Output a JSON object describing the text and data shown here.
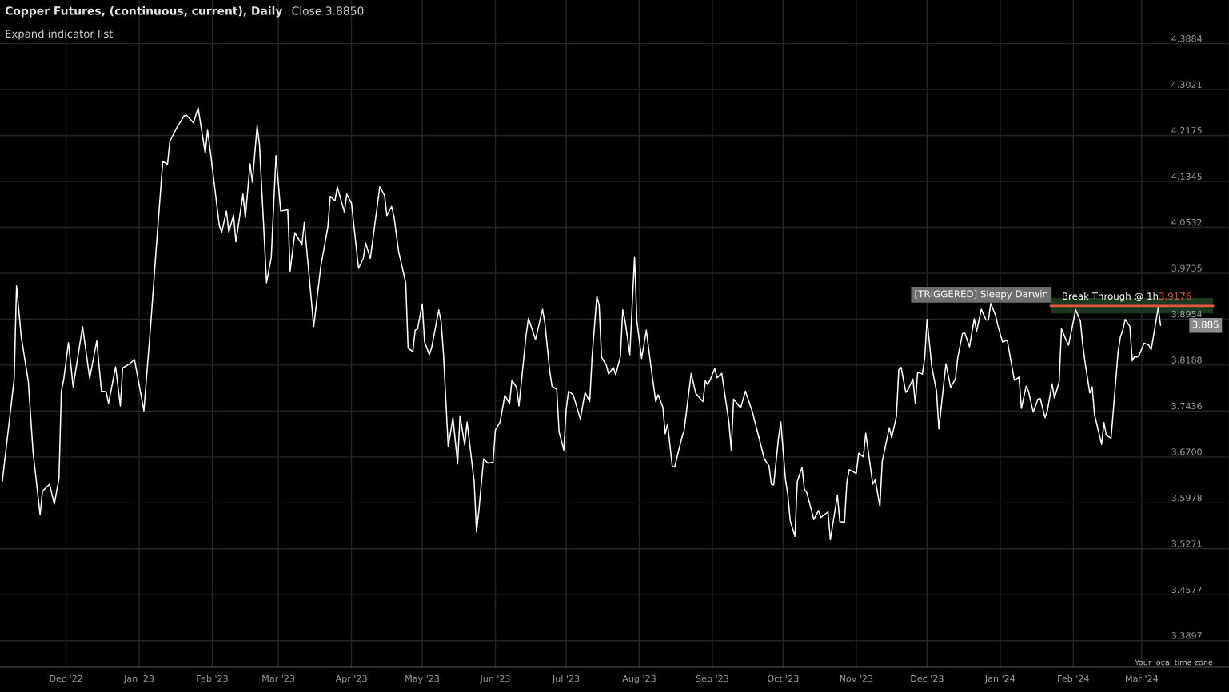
{
  "chart_data": {
    "type": "line",
    "title": "Copper Futures, (continuous, current), Daily",
    "subtitle": "Close 3.8850",
    "annotations": [
      "Expand indicator list",
      "[TRIGGERED] Sleepy Darwin",
      "3.9176",
      "3.885",
      "Your local time zone"
    ],
    "log": true,
    "grid": true,
    "xlim": [
      "2022-11-03",
      "2024-04-07"
    ],
    "ylim": [
      3.351,
      4.472
    ],
    "xticks": [
      {
        "value": "2022-12-01",
        "label": "Dec '22"
      },
      {
        "value": "2023-01-01",
        "label": "Jan '23"
      },
      {
        "value": "2023-02-01",
        "label": "Feb '23"
      },
      {
        "value": "2023-03-01",
        "label": "Mar '23"
      },
      {
        "value": "2023-04-01",
        "label": "Apr '23"
      },
      {
        "value": "2023-05-01",
        "label": "May '23"
      },
      {
        "value": "2023-06-01",
        "label": "Jun '23"
      },
      {
        "value": "2023-07-01",
        "label": "Jul '23"
      },
      {
        "value": "2023-08-01",
        "label": "Aug '23"
      },
      {
        "value": "2023-09-01",
        "label": "Sep '23"
      },
      {
        "value": "2023-10-01",
        "label": "Oct '23"
      },
      {
        "value": "2023-11-01",
        "label": "Nov '23"
      },
      {
        "value": "2023-12-01",
        "label": "Dec '23"
      },
      {
        "value": "2024-01-01",
        "label": "Jan '24"
      },
      {
        "value": "2024-02-01",
        "label": "Feb '24"
      },
      {
        "value": "2024-03-01",
        "label": "Mar '24"
      }
    ],
    "yticks": [
      3.3897,
      3.4577,
      3.5271,
      3.5978,
      {
        "value": 3.67,
        "label": "3.6700"
      },
      3.7436,
      3.8188,
      3.8954,
      3.9735,
      4.0532,
      4.1345,
      4.2175,
      4.3021,
      4.3884
    ],
    "ref_lines": [
      {
        "axis": "y",
        "value": 3.9176,
        "label": "Break Through @ 1h",
        "color": "#e8553f"
      }
    ],
    "bands": [
      {
        "axis": "y",
        "from": 3.905,
        "to": 3.931,
        "color": "#1d3a1f"
      }
    ],
    "series": [
      {
        "color": "#ffffff",
        "x": [
          "2022-11-04",
          "2022-11-09",
          "2022-11-10",
          "2022-11-12",
          "2022-11-15",
          "2022-11-17",
          "2022-11-20",
          "2022-11-21",
          "2022-11-24",
          "2022-11-26",
          "2022-11-28",
          "2022-11-29",
          "2022-11-30",
          "2022-12-02",
          "2022-12-04",
          "2022-12-08",
          "2022-12-11",
          "2022-12-14",
          "2022-12-16",
          "2022-12-18",
          "2022-12-19",
          "2022-12-22",
          "2022-12-24",
          "2022-12-25",
          "2022-12-28",
          "2022-12-30",
          "2022-12-31",
          "2023-01-03",
          "2023-01-06",
          "2023-01-08",
          "2023-01-11",
          "2023-01-13",
          "2023-01-14",
          "2023-01-17",
          "2023-01-20",
          "2023-01-21",
          "2023-01-24",
          "2023-01-26",
          "2023-01-29",
          "2023-01-30",
          "2023-01-31",
          "2023-02-04",
          "2023-02-05",
          "2023-02-07",
          "2023-02-08",
          "2023-02-10",
          "2023-02-11",
          "2023-02-14",
          "2023-02-15",
          "2023-02-17",
          "2023-02-18",
          "2023-02-20",
          "2023-02-21",
          "2023-02-24",
          "2023-02-26",
          "2023-02-28",
          "2023-03-02",
          "2023-03-05",
          "2023-03-06",
          "2023-03-08",
          "2023-03-11",
          "2023-03-12",
          "2023-03-13",
          "2023-03-16",
          "2023-03-19",
          "2023-03-22",
          "2023-03-23",
          "2023-03-25",
          "2023-03-26",
          "2023-03-29",
          "2023-03-30",
          "2023-04-01",
          "2023-04-04",
          "2023-04-06",
          "2023-04-07",
          "2023-04-09",
          "2023-04-13",
          "2023-04-15",
          "2023-04-16",
          "2023-04-18",
          "2023-04-19",
          "2023-04-21",
          "2023-04-24",
          "2023-04-25",
          "2023-04-27",
          "2023-04-28",
          "2023-04-29",
          "2023-05-01",
          "2023-05-02",
          "2023-05-04",
          "2023-05-05",
          "2023-05-08",
          "2023-05-09",
          "2023-05-10",
          "2023-05-12",
          "2023-05-14",
          "2023-05-16",
          "2023-05-17",
          "2023-05-19",
          "2023-05-20",
          "2023-05-23",
          "2023-05-24",
          "2023-05-25",
          "2023-05-27",
          "2023-05-29",
          "2023-05-31",
          "2023-06-01",
          "2023-06-03",
          "2023-06-05",
          "2023-06-07",
          "2023-06-08",
          "2023-06-10",
          "2023-06-11",
          "2023-06-14",
          "2023-06-15",
          "2023-06-18",
          "2023-06-21",
          "2023-06-22",
          "2023-06-24",
          "2023-06-25",
          "2023-06-27",
          "2023-06-28",
          "2023-06-30",
          "2023-07-01",
          "2023-07-02",
          "2023-07-04",
          "2023-07-07",
          "2023-07-09",
          "2023-07-11",
          "2023-07-12",
          "2023-07-14",
          "2023-07-15",
          "2023-07-16",
          "2023-07-18",
          "2023-07-19",
          "2023-07-21",
          "2023-07-22",
          "2023-07-24",
          "2023-07-25",
          "2023-07-26",
          "2023-07-28",
          "2023-07-29",
          "2023-07-30",
          "2023-07-31",
          "2023-08-02",
          "2023-08-04",
          "2023-08-05",
          "2023-08-06",
          "2023-08-08",
          "2023-08-09",
          "2023-08-11",
          "2023-08-12",
          "2023-08-13",
          "2023-08-15",
          "2023-08-16",
          "2023-08-19",
          "2023-08-20",
          "2023-08-23",
          "2023-08-25",
          "2023-08-28",
          "2023-08-29",
          "2023-08-30",
          "2023-08-31",
          "2023-09-02",
          "2023-09-03",
          "2023-09-05",
          "2023-09-08",
          "2023-09-09",
          "2023-09-10",
          "2023-09-13",
          "2023-09-15",
          "2023-09-18",
          "2023-09-20",
          "2023-09-23",
          "2023-09-25",
          "2023-09-26",
          "2023-09-27",
          "2023-09-29",
          "2023-09-30",
          "2023-10-02",
          "2023-10-03",
          "2023-10-04",
          "2023-10-06",
          "2023-10-07",
          "2023-10-09",
          "2023-10-10",
          "2023-10-11",
          "2023-10-14",
          "2023-10-16",
          "2023-10-17",
          "2023-10-20",
          "2023-10-21",
          "2023-10-24",
          "2023-10-25",
          "2023-10-27",
          "2023-10-28",
          "2023-10-29",
          "2023-11-01",
          "2023-11-02",
          "2023-11-04",
          "2023-11-05",
          "2023-11-08",
          "2023-11-09",
          "2023-11-11",
          "2023-11-12",
          "2023-11-13",
          "2023-11-15",
          "2023-11-16",
          "2023-11-18",
          "2023-11-19",
          "2023-11-20",
          "2023-11-22",
          "2023-11-23",
          "2023-11-25",
          "2023-11-26",
          "2023-11-27",
          "2023-11-29",
          "2023-11-30",
          "2023-12-01",
          "2023-12-03",
          "2023-12-05",
          "2023-12-06",
          "2023-12-08",
          "2023-12-09",
          "2023-12-11",
          "2023-12-13",
          "2023-12-14",
          "2023-12-16",
          "2023-12-17",
          "2023-12-19",
          "2023-12-21",
          "2023-12-22",
          "2023-12-24",
          "2023-12-26",
          "2023-12-27",
          "2023-12-28",
          "2023-12-30",
          "2023-12-31",
          "2024-01-02",
          "2024-01-04",
          "2024-01-05",
          "2024-01-07",
          "2024-01-09",
          "2024-01-10",
          "2024-01-12",
          "2024-01-13",
          "2024-01-15",
          "2024-01-17",
          "2024-01-18",
          "2024-01-20",
          "2024-01-21",
          "2024-01-23",
          "2024-01-24",
          "2024-01-26",
          "2024-01-27",
          "2024-01-29",
          "2024-01-30",
          "2024-02-02",
          "2024-02-04",
          "2024-02-05",
          "2024-02-06",
          "2024-02-08",
          "2024-02-09",
          "2024-02-10",
          "2024-02-13",
          "2024-02-14",
          "2024-02-15",
          "2024-02-17",
          "2024-02-18",
          "2024-02-20",
          "2024-02-21",
          "2024-02-22",
          "2024-02-23",
          "2024-02-25",
          "2024-02-26",
          "2024-02-27",
          "2024-02-28",
          "2024-02-29",
          "2024-03-02",
          "2024-03-04",
          "2024-03-05",
          "2024-03-06",
          "2024-03-08",
          "2024-03-09"
        ],
        "values": [
          3.632,
          3.796,
          3.952,
          3.866,
          3.792,
          3.678,
          3.579,
          3.616,
          3.627,
          3.596,
          3.636,
          3.776,
          3.795,
          3.856,
          3.783,
          3.883,
          3.797,
          3.859,
          3.776,
          3.775,
          3.756,
          3.816,
          3.752,
          3.814,
          3.821,
          3.828,
          3.807,
          3.744,
          3.892,
          4.004,
          4.171,
          4.165,
          4.207,
          4.232,
          4.253,
          4.255,
          4.241,
          4.268,
          4.185,
          4.227,
          4.194,
          4.056,
          4.045,
          4.082,
          4.045,
          4.075,
          4.028,
          4.112,
          4.07,
          4.166,
          4.133,
          4.235,
          4.201,
          3.957,
          4.001,
          4.181,
          4.082,
          4.084,
          3.977,
          4.044,
          4.023,
          4.062,
          4.016,
          3.883,
          3.985,
          4.054,
          4.108,
          4.1,
          4.125,
          4.08,
          4.112,
          4.096,
          3.982,
          3.999,
          4.026,
          3.999,
          4.125,
          4.11,
          4.074,
          4.09,
          4.073,
          4.011,
          3.957,
          3.847,
          3.841,
          3.877,
          3.879,
          3.921,
          3.857,
          3.836,
          3.848,
          3.911,
          3.891,
          3.837,
          3.686,
          3.733,
          3.659,
          3.736,
          3.689,
          3.726,
          3.631,
          3.553,
          3.586,
          3.667,
          3.66,
          3.662,
          3.713,
          3.726,
          3.769,
          3.756,
          3.794,
          3.782,
          3.752,
          3.868,
          3.897,
          3.861,
          3.912,
          3.888,
          3.81,
          3.784,
          3.779,
          3.71,
          3.681,
          3.746,
          3.776,
          3.77,
          3.731,
          3.774,
          3.759,
          3.833,
          3.934,
          3.919,
          3.832,
          3.819,
          3.804,
          3.815,
          3.803,
          3.833,
          3.911,
          3.892,
          3.836,
          3.919,
          4.002,
          3.892,
          3.83,
          3.877,
          3.846,
          3.815,
          3.759,
          3.77,
          3.75,
          3.707,
          3.723,
          3.655,
          3.654,
          3.7,
          3.712,
          3.805,
          3.772,
          3.759,
          3.793,
          3.787,
          3.794,
          3.813,
          3.798,
          3.805,
          3.726,
          3.681,
          3.763,
          3.749,
          3.776,
          3.742,
          3.712,
          3.667,
          3.656,
          3.627,
          3.626,
          3.699,
          3.726,
          3.634,
          3.61,
          3.57,
          3.546,
          3.631,
          3.654,
          3.619,
          3.614,
          3.572,
          3.586,
          3.575,
          3.584,
          3.541,
          3.61,
          3.569,
          3.568,
          3.63,
          3.65,
          3.644,
          3.676,
          3.67,
          3.708,
          3.627,
          3.634,
          3.593,
          3.663,
          3.681,
          3.717,
          3.701,
          3.735,
          3.811,
          3.815,
          3.774,
          3.779,
          3.796,
          3.756,
          3.807,
          3.804,
          3.831,
          3.895,
          3.816,
          3.776,
          3.715,
          3.786,
          3.821,
          3.782,
          3.796,
          3.831,
          3.871,
          3.872,
          3.849,
          3.896,
          3.875,
          3.912,
          3.894,
          3.894,
          3.922,
          3.902,
          3.885,
          3.857,
          3.86,
          3.838,
          3.794,
          3.799,
          3.748,
          3.784,
          3.776,
          3.742,
          3.763,
          3.764,
          3.733,
          3.744,
          3.788,
          3.765,
          3.791,
          3.879,
          3.86,
          3.852,
          3.911,
          3.892,
          3.853,
          3.823,
          3.773,
          3.783,
          3.738,
          3.69,
          3.725,
          3.705,
          3.7,
          3.746,
          3.841,
          3.866,
          3.877,
          3.895,
          3.883,
          3.826,
          3.833,
          3.832,
          3.836,
          3.855,
          3.852,
          3.844,
          3.867,
          3.915,
          3.885
        ]
      }
    ]
  }
}
